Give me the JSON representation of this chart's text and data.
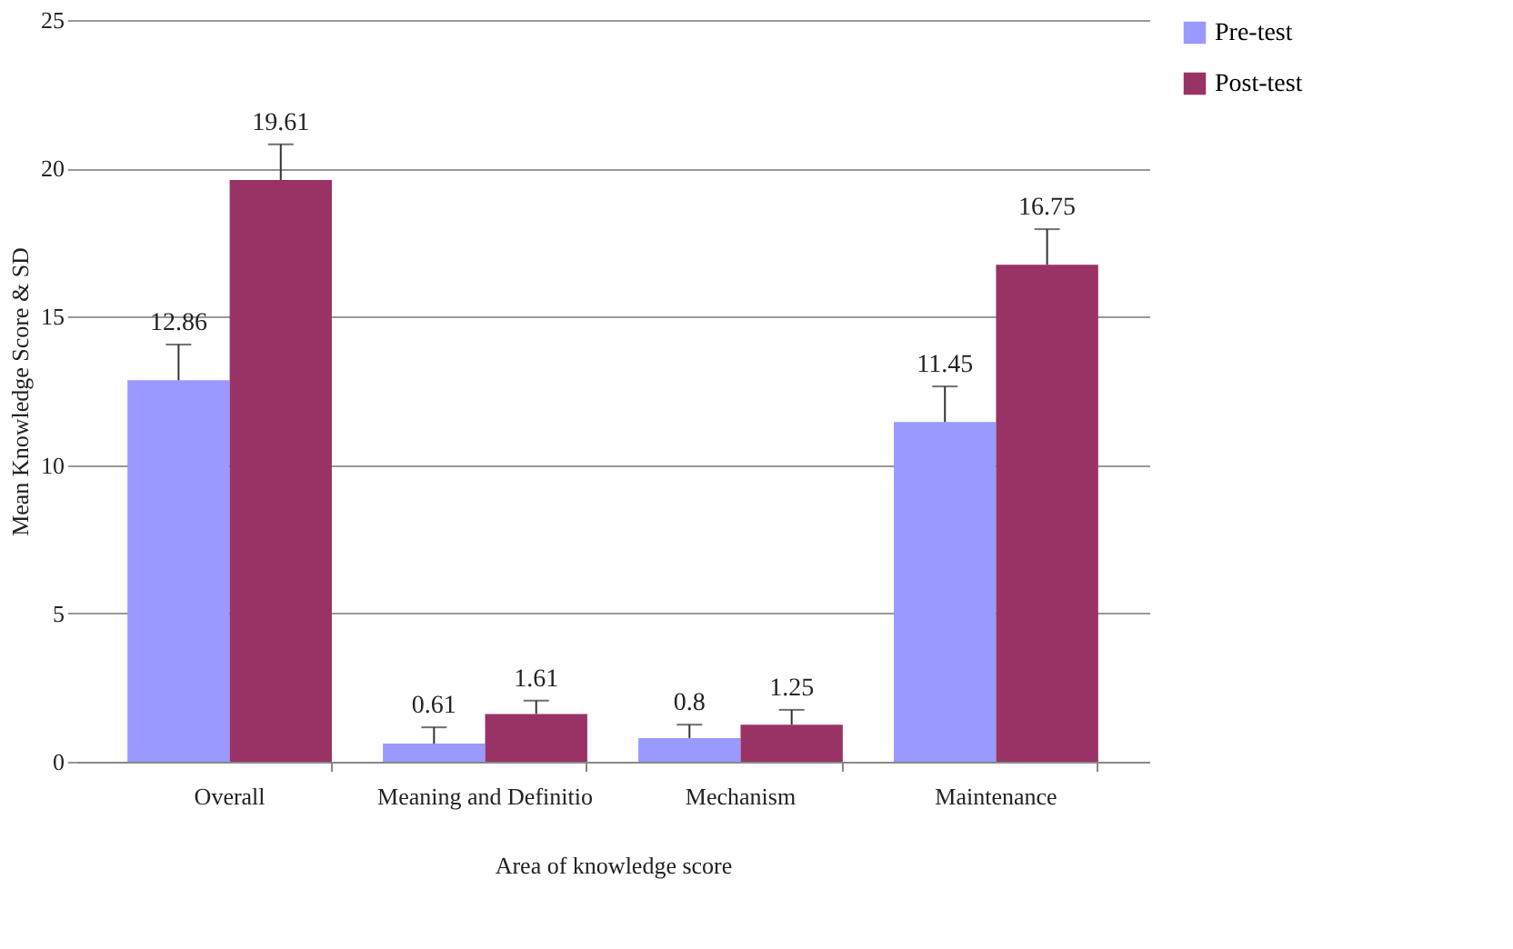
{
  "chart_data": {
    "type": "bar",
    "xlabel": "Area of knowledge score",
    "ylabel": "Mean Knowledge Score & SD",
    "categories": [
      "Overall",
      "Meaning and Definitio",
      "Mechanism",
      "Maintenance"
    ],
    "series": [
      {
        "name": "Pre-test",
        "color": "#9999ff",
        "values": [
          12.86,
          0.61,
          0.8,
          11.45
        ],
        "errors": [
          [
            12.86,
            14.06
          ],
          [
            0.61,
            1.16
          ],
          [
            0.8,
            1.25
          ],
          [
            11.45,
            12.65
          ]
        ]
      },
      {
        "name": "Post-test",
        "color": "#993366",
        "values": [
          19.61,
          1.61,
          1.25,
          16.75
        ],
        "errors": [
          [
            19.61,
            20.81
          ],
          [
            1.61,
            2.06
          ],
          [
            1.25,
            1.75
          ],
          [
            16.75,
            17.95
          ]
        ]
      }
    ],
    "ylim": [
      0,
      25
    ],
    "yticks": [
      0,
      5,
      10,
      15,
      20,
      25
    ],
    "grid": "y",
    "legend": "right",
    "data_labels": true
  }
}
